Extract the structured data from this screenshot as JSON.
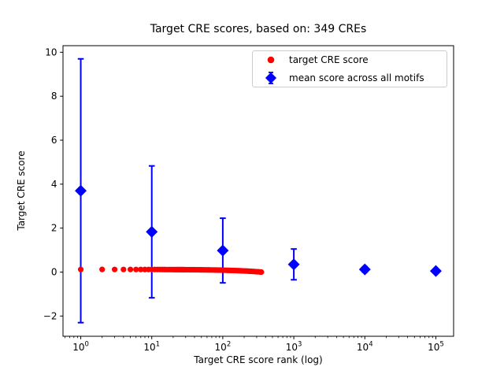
{
  "chart_data": {
    "type": "scatter",
    "title": "Target CRE scores, based on: 349 CREs",
    "xlabel": "Target CRE score rank (log)",
    "ylabel": "Target CRE score",
    "x_scale": "log",
    "xlim_log10": [
      -0.25,
      5.25
    ],
    "ylim": [
      -2.92,
      10.3
    ],
    "x_tick_base": "10",
    "x_tick_exponents": [
      0,
      1,
      2,
      3,
      4,
      5
    ],
    "y_ticks": [
      -2,
      0,
      2,
      4,
      6,
      8,
      10
    ],
    "y_tick_labels": [
      "−2",
      "0",
      "2",
      "4",
      "6",
      "8",
      "10"
    ],
    "grid": false,
    "legend": {
      "position": "upper right",
      "items": [
        {
          "label": "target CRE score",
          "marker": "circle",
          "color": "#ff0000"
        },
        {
          "label": "mean score across all motifs",
          "marker": "diamond-errorbar",
          "color": "#0000ff"
        }
      ]
    },
    "series": [
      {
        "name": "target CRE score",
        "type": "scatter",
        "marker": "circle",
        "color": "#ff0000",
        "x": [
          1,
          2,
          3,
          4,
          5,
          6,
          7,
          8,
          9,
          10,
          11,
          12,
          13,
          14,
          15,
          16,
          17,
          18,
          19,
          20,
          21,
          22,
          23,
          24,
          25,
          26,
          27,
          28,
          29,
          30,
          32,
          34,
          36,
          38,
          40,
          42,
          44,
          46,
          48,
          50,
          53,
          56,
          59,
          62,
          65,
          68,
          72,
          76,
          80,
          84,
          88,
          93,
          98,
          103,
          108,
          114,
          120,
          126,
          133,
          140,
          147,
          155,
          163,
          171,
          180,
          189,
          199,
          209,
          220,
          231,
          243,
          255,
          268,
          281,
          295,
          310,
          326,
          342,
          349
        ],
        "y": [
          0.12,
          0.1197,
          0.1193,
          0.119,
          0.1186,
          0.1183,
          0.1179,
          0.1176,
          0.1172,
          0.1169,
          0.1166,
          0.1162,
          0.1159,
          0.1155,
          0.1152,
          0.1148,
          0.1145,
          0.1141,
          0.1138,
          0.1135,
          0.1131,
          0.1128,
          0.1124,
          0.1121,
          0.1117,
          0.1114,
          0.111,
          0.1107,
          0.1104,
          0.11,
          0.1093,
          0.1086,
          0.108,
          0.1073,
          0.1066,
          0.1059,
          0.1052,
          0.1045,
          0.1038,
          0.1031,
          0.1021,
          0.1011,
          0.1,
          0.099,
          0.098,
          0.097,
          0.0956,
          0.0942,
          0.0928,
          0.0915,
          0.0901,
          0.0884,
          0.0866,
          0.0849,
          0.0832,
          0.0811,
          0.0791,
          0.077,
          0.0746,
          0.0722,
          0.0698,
          0.067,
          0.0643,
          0.0615,
          0.0584,
          0.0554,
          0.0519,
          0.0485,
          0.0447,
          0.0409,
          0.0368,
          0.0327,
          0.0282,
          0.0237,
          0.0189,
          0.0138,
          0.0083,
          0.0028,
          0.0003
        ]
      },
      {
        "name": "mean score across all motifs",
        "type": "errorbar",
        "marker": "diamond",
        "color": "#0000ff",
        "x": [
          1,
          10,
          100,
          1000,
          10000,
          100000
        ],
        "y": [
          3.7,
          1.83,
          0.98,
          0.35,
          0.12,
          0.05
        ],
        "yerr": [
          6.0,
          3.0,
          1.47,
          0.7,
          0.12,
          0.05
        ]
      }
    ]
  }
}
